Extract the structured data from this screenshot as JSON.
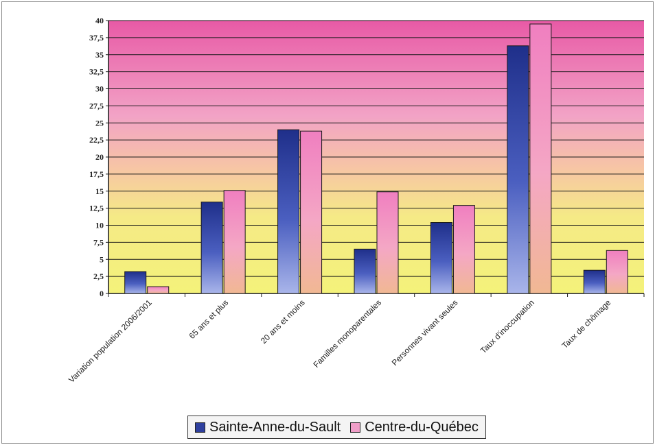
{
  "chart_data": {
    "type": "bar",
    "categories": [
      "Variation population 2006/2001",
      "65 ans et plus",
      "20 ans et moins",
      "Familles monoparentales",
      "Personnes vivant seules",
      "Taux d'inoccupation",
      "Taux de chômage"
    ],
    "series": [
      {
        "name": "Sainte-Anne-du-Sault",
        "values": [
          3.2,
          13.4,
          24.0,
          6.5,
          10.4,
          36.3,
          3.4
        ],
        "color": "#2e3f9e"
      },
      {
        "name": "Centre-du-Québec",
        "values": [
          1.0,
          15.1,
          23.8,
          14.9,
          12.9,
          39.5,
          6.3
        ],
        "color": "#f09ec8"
      }
    ],
    "ylim": [
      0,
      40
    ],
    "yticks": [
      "0",
      "2,5",
      "5",
      "7,5",
      "10",
      "12,5",
      "15",
      "17,5",
      "20",
      "22,5",
      "25",
      "27,5",
      "30",
      "32,5",
      "35",
      "37,5",
      "40"
    ],
    "grid": true,
    "legend_position": "bottom",
    "plot_background": {
      "top": "#e85aa6",
      "middle": "#f7b6c2",
      "bottom": "#f5f27a"
    },
    "title": "",
    "xlabel": "",
    "ylabel": ""
  }
}
